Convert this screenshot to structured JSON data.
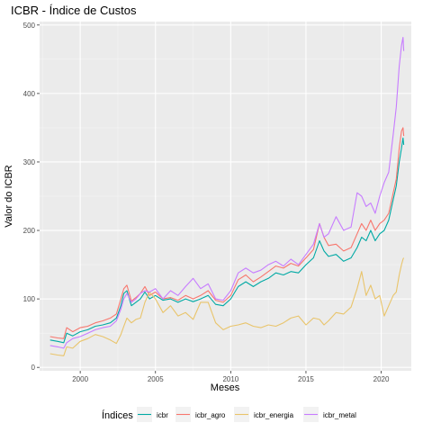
{
  "chart_data": {
    "type": "line",
    "title": "ICBR - Índice de Custos",
    "xlabel": "Meses",
    "ylabel": "Valor do ICBR",
    "xlim": [
      1997.3,
      2022.0
    ],
    "ylim": [
      -5,
      505
    ],
    "x_ticks": [
      2000,
      2005,
      2010,
      2015,
      2020
    ],
    "y_ticks": [
      0,
      100,
      200,
      300,
      400,
      500
    ],
    "grid": true,
    "legend_title": "Índices",
    "legend_position": "bottom",
    "series": [
      {
        "name": "icbr",
        "color": "#00A9A4",
        "points": [
          [
            1998.0,
            40
          ],
          [
            1998.5,
            38
          ],
          [
            1998.9,
            36
          ],
          [
            1999.1,
            50
          ],
          [
            1999.5,
            46
          ],
          [
            2000.0,
            52
          ],
          [
            2000.5,
            55
          ],
          [
            2001.0,
            60
          ],
          [
            2001.5,
            62
          ],
          [
            2002.0,
            65
          ],
          [
            2002.4,
            72
          ],
          [
            2002.7,
            90
          ],
          [
            2002.9,
            108
          ],
          [
            2003.1,
            112
          ],
          [
            2003.4,
            90
          ],
          [
            2003.7,
            95
          ],
          [
            2004.0,
            100
          ],
          [
            2004.3,
            110
          ],
          [
            2004.6,
            100
          ],
          [
            2005.0,
            105
          ],
          [
            2005.5,
            98
          ],
          [
            2006.0,
            100
          ],
          [
            2006.5,
            95
          ],
          [
            2007.0,
            100
          ],
          [
            2007.5,
            96
          ],
          [
            2008.0,
            100
          ],
          [
            2008.5,
            105
          ],
          [
            2009.0,
            92
          ],
          [
            2009.5,
            90
          ],
          [
            2010.0,
            100
          ],
          [
            2010.5,
            118
          ],
          [
            2011.0,
            125
          ],
          [
            2011.5,
            118
          ],
          [
            2012.0,
            125
          ],
          [
            2012.5,
            130
          ],
          [
            2013.0,
            138
          ],
          [
            2013.5,
            135
          ],
          [
            2014.0,
            140
          ],
          [
            2014.5,
            138
          ],
          [
            2015.0,
            150
          ],
          [
            2015.5,
            160
          ],
          [
            2015.9,
            185
          ],
          [
            2016.2,
            170
          ],
          [
            2016.5,
            162
          ],
          [
            2017.0,
            165
          ],
          [
            2017.5,
            155
          ],
          [
            2018.0,
            160
          ],
          [
            2018.4,
            175
          ],
          [
            2018.7,
            190
          ],
          [
            2019.0,
            185
          ],
          [
            2019.3,
            200
          ],
          [
            2019.6,
            185
          ],
          [
            2019.9,
            195
          ],
          [
            2020.2,
            200
          ],
          [
            2020.5,
            215
          ],
          [
            2020.8,
            245
          ],
          [
            2021.0,
            265
          ],
          [
            2021.2,
            300
          ],
          [
            2021.35,
            320
          ],
          [
            2021.45,
            335
          ],
          [
            2021.5,
            325
          ]
        ]
      },
      {
        "name": "icbr_agro",
        "color": "#F8766D",
        "points": [
          [
            1998.0,
            45
          ],
          [
            1998.5,
            43
          ],
          [
            1998.9,
            42
          ],
          [
            1999.1,
            58
          ],
          [
            1999.5,
            52
          ],
          [
            2000.0,
            58
          ],
          [
            2000.5,
            60
          ],
          [
            2001.0,
            65
          ],
          [
            2001.5,
            68
          ],
          [
            2002.0,
            72
          ],
          [
            2002.4,
            78
          ],
          [
            2002.7,
            100
          ],
          [
            2002.9,
            115
          ],
          [
            2003.1,
            120
          ],
          [
            2003.4,
            97
          ],
          [
            2003.7,
            102
          ],
          [
            2004.0,
            108
          ],
          [
            2004.3,
            118
          ],
          [
            2004.6,
            105
          ],
          [
            2005.0,
            110
          ],
          [
            2005.5,
            100
          ],
          [
            2006.0,
            102
          ],
          [
            2006.5,
            98
          ],
          [
            2007.0,
            105
          ],
          [
            2007.5,
            100
          ],
          [
            2008.0,
            105
          ],
          [
            2008.5,
            112
          ],
          [
            2009.0,
            98
          ],
          [
            2009.5,
            95
          ],
          [
            2010.0,
            105
          ],
          [
            2010.5,
            128
          ],
          [
            2011.0,
            135
          ],
          [
            2011.5,
            125
          ],
          [
            2012.0,
            132
          ],
          [
            2012.5,
            140
          ],
          [
            2013.0,
            148
          ],
          [
            2013.5,
            145
          ],
          [
            2014.0,
            152
          ],
          [
            2014.5,
            148
          ],
          [
            2015.0,
            160
          ],
          [
            2015.5,
            172
          ],
          [
            2015.9,
            210
          ],
          [
            2016.2,
            190
          ],
          [
            2016.5,
            178
          ],
          [
            2017.0,
            180
          ],
          [
            2017.5,
            170
          ],
          [
            2018.0,
            175
          ],
          [
            2018.4,
            195
          ],
          [
            2018.7,
            210
          ],
          [
            2019.0,
            200
          ],
          [
            2019.3,
            215
          ],
          [
            2019.6,
            200
          ],
          [
            2019.9,
            210
          ],
          [
            2020.2,
            215
          ],
          [
            2020.5,
            225
          ],
          [
            2020.8,
            255
          ],
          [
            2021.0,
            275
          ],
          [
            2021.2,
            320
          ],
          [
            2021.35,
            345
          ],
          [
            2021.45,
            350
          ],
          [
            2021.5,
            338
          ]
        ]
      },
      {
        "name": "icbr_energia",
        "color": "#E9C46A",
        "points": [
          [
            1998.0,
            20
          ],
          [
            1998.5,
            18
          ],
          [
            1998.9,
            17
          ],
          [
            1999.1,
            30
          ],
          [
            1999.5,
            28
          ],
          [
            2000.0,
            38
          ],
          [
            2000.5,
            42
          ],
          [
            2001.0,
            48
          ],
          [
            2001.5,
            45
          ],
          [
            2002.0,
            40
          ],
          [
            2002.4,
            35
          ],
          [
            2002.7,
            48
          ],
          [
            2002.9,
            60
          ],
          [
            2003.1,
            72
          ],
          [
            2003.4,
            65
          ],
          [
            2003.7,
            70
          ],
          [
            2004.0,
            72
          ],
          [
            2004.3,
            95
          ],
          [
            2004.6,
            110
          ],
          [
            2005.0,
            100
          ],
          [
            2005.5,
            80
          ],
          [
            2006.0,
            90
          ],
          [
            2006.5,
            75
          ],
          [
            2007.0,
            80
          ],
          [
            2007.5,
            70
          ],
          [
            2008.0,
            95
          ],
          [
            2008.5,
            95
          ],
          [
            2009.0,
            65
          ],
          [
            2009.5,
            55
          ],
          [
            2010.0,
            60
          ],
          [
            2010.5,
            62
          ],
          [
            2011.0,
            65
          ],
          [
            2011.5,
            60
          ],
          [
            2012.0,
            58
          ],
          [
            2012.5,
            62
          ],
          [
            2013.0,
            60
          ],
          [
            2013.5,
            65
          ],
          [
            2014.0,
            72
          ],
          [
            2014.5,
            75
          ],
          [
            2015.0,
            62
          ],
          [
            2015.5,
            72
          ],
          [
            2015.9,
            70
          ],
          [
            2016.2,
            62
          ],
          [
            2016.5,
            68
          ],
          [
            2017.0,
            80
          ],
          [
            2017.5,
            78
          ],
          [
            2018.0,
            88
          ],
          [
            2018.4,
            115
          ],
          [
            2018.7,
            140
          ],
          [
            2019.0,
            105
          ],
          [
            2019.3,
            120
          ],
          [
            2019.6,
            100
          ],
          [
            2019.9,
            105
          ],
          [
            2020.2,
            75
          ],
          [
            2020.5,
            90
          ],
          [
            2020.8,
            105
          ],
          [
            2021.0,
            110
          ],
          [
            2021.2,
            135
          ],
          [
            2021.35,
            150
          ],
          [
            2021.45,
            158
          ],
          [
            2021.5,
            160
          ]
        ]
      },
      {
        "name": "icbr_metal",
        "color": "#C77CFF",
        "points": [
          [
            1998.0,
            32
          ],
          [
            1998.5,
            30
          ],
          [
            1998.9,
            28
          ],
          [
            1999.1,
            36
          ],
          [
            1999.5,
            42
          ],
          [
            2000.0,
            45
          ],
          [
            2000.5,
            50
          ],
          [
            2001.0,
            55
          ],
          [
            2001.5,
            58
          ],
          [
            2002.0,
            60
          ],
          [
            2002.4,
            68
          ],
          [
            2002.7,
            85
          ],
          [
            2002.9,
            100
          ],
          [
            2003.1,
            108
          ],
          [
            2003.4,
            95
          ],
          [
            2003.7,
            100
          ],
          [
            2004.0,
            108
          ],
          [
            2004.3,
            112
          ],
          [
            2004.6,
            110
          ],
          [
            2005.0,
            115
          ],
          [
            2005.5,
            100
          ],
          [
            2006.0,
            112
          ],
          [
            2006.5,
            105
          ],
          [
            2007.0,
            118
          ],
          [
            2007.5,
            130
          ],
          [
            2008.0,
            115
          ],
          [
            2008.5,
            122
          ],
          [
            2009.0,
            100
          ],
          [
            2009.5,
            98
          ],
          [
            2010.0,
            112
          ],
          [
            2010.5,
            138
          ],
          [
            2011.0,
            145
          ],
          [
            2011.5,
            138
          ],
          [
            2012.0,
            142
          ],
          [
            2012.5,
            150
          ],
          [
            2013.0,
            155
          ],
          [
            2013.5,
            148
          ],
          [
            2014.0,
            158
          ],
          [
            2014.5,
            150
          ],
          [
            2015.0,
            165
          ],
          [
            2015.5,
            180
          ],
          [
            2015.9,
            210
          ],
          [
            2016.2,
            190
          ],
          [
            2016.5,
            195
          ],
          [
            2017.0,
            220
          ],
          [
            2017.5,
            200
          ],
          [
            2018.0,
            205
          ],
          [
            2018.4,
            255
          ],
          [
            2018.7,
            250
          ],
          [
            2019.0,
            235
          ],
          [
            2019.3,
            240
          ],
          [
            2019.6,
            225
          ],
          [
            2019.9,
            250
          ],
          [
            2020.2,
            270
          ],
          [
            2020.5,
            285
          ],
          [
            2020.8,
            340
          ],
          [
            2021.0,
            380
          ],
          [
            2021.2,
            440
          ],
          [
            2021.35,
            470
          ],
          [
            2021.45,
            482
          ],
          [
            2021.5,
            462
          ]
        ]
      }
    ]
  }
}
